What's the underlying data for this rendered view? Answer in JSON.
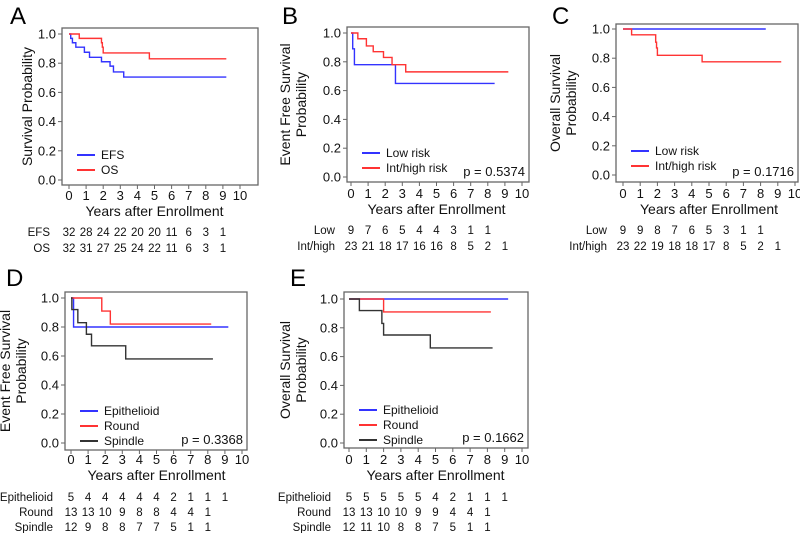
{
  "chart_data": [
    {
      "type": "line",
      "panel": "A",
      "ylabel": [
        "Survival Probability"
      ],
      "xlabel": "Years after Enrollment",
      "xlim": [
        0,
        10
      ],
      "ylim": [
        0,
        1
      ],
      "xticks": [
        "0",
        "1",
        "2",
        "3",
        "4",
        "5",
        "6",
        "7",
        "8",
        "9",
        "10"
      ],
      "yticks": [
        "0.0",
        "0.2",
        "0.4",
        "0.6",
        "0.8",
        "1.0"
      ],
      "p_value": null,
      "legend_position": "bottom-left",
      "series": [
        {
          "name": "EFS",
          "color": "#3333ff",
          "steps": [
            [
              0,
              1
            ],
            [
              0.1,
              0.97
            ],
            [
              0.2,
              0.94
            ],
            [
              0.4,
              0.91
            ],
            [
              0.9,
              0.875
            ],
            [
              1.2,
              0.84
            ],
            [
              1.9,
              0.81
            ],
            [
              2.4,
              0.78
            ],
            [
              2.6,
              0.74
            ],
            [
              3.2,
              0.705
            ]
          ],
          "end": 9.2
        },
        {
          "name": "OS",
          "color": "#ff3333",
          "steps": [
            [
              0,
              1
            ],
            [
              0.6,
              0.97
            ],
            [
              1.9,
              0.94
            ],
            [
              1.95,
              0.91
            ],
            [
              2.0,
              0.87
            ],
            [
              4.7,
              0.83
            ]
          ],
          "end": 9.2
        }
      ],
      "risk_table": [
        {
          "label": "EFS",
          "values": [
            "32",
            "28",
            "24",
            "22",
            "20",
            "20",
            "11",
            "6",
            "3",
            "1"
          ]
        },
        {
          "label": "OS",
          "values": [
            "32",
            "31",
            "27",
            "25",
            "24",
            "22",
            "11",
            "6",
            "3",
            "1"
          ]
        }
      ]
    },
    {
      "type": "line",
      "panel": "B",
      "ylabel": [
        "Event Free Survival",
        "Probability"
      ],
      "xlabel": "Years after Enrollment",
      "xlim": [
        0,
        10
      ],
      "ylim": [
        0,
        1
      ],
      "xticks": [
        "0",
        "1",
        "2",
        "3",
        "4",
        "5",
        "6",
        "7",
        "8",
        "9",
        "10"
      ],
      "yticks": [
        "0.0",
        "0.2",
        "0.4",
        "0.6",
        "0.8",
        "1.0"
      ],
      "p_value": "p = 0.5374",
      "legend_position": "bottom-left",
      "series": [
        {
          "name": "Low risk",
          "color": "#3333ff",
          "steps": [
            [
              0,
              1
            ],
            [
              0.1,
              0.89
            ],
            [
              0.2,
              0.78
            ],
            [
              2.6,
              0.65
            ]
          ],
          "end": 8.4
        },
        {
          "name": "Int/high risk",
          "color": "#ff3333",
          "steps": [
            [
              0,
              1
            ],
            [
              0.4,
              0.96
            ],
            [
              0.9,
              0.91
            ],
            [
              1.3,
              0.87
            ],
            [
              1.9,
              0.83
            ],
            [
              2.4,
              0.78
            ],
            [
              3.2,
              0.73
            ]
          ],
          "end": 9.2
        }
      ],
      "risk_table": [
        {
          "label": "Low",
          "values": [
            "9",
            "7",
            "6",
            "5",
            "4",
            "4",
            "3",
            "1",
            "1",
            ""
          ]
        },
        {
          "label": "Int/high",
          "values": [
            "23",
            "21",
            "18",
            "17",
            "16",
            "16",
            "8",
            "5",
            "2",
            "1"
          ]
        }
      ]
    },
    {
      "type": "line",
      "panel": "C",
      "ylabel": [
        "Overall Survival",
        "Probability"
      ],
      "xlabel": "Years after Enrollment",
      "xlim": [
        0,
        10
      ],
      "ylim": [
        0,
        1
      ],
      "xticks": [
        "0",
        "1",
        "2",
        "3",
        "4",
        "5",
        "6",
        "7",
        "8",
        "9",
        "10"
      ],
      "yticks": [
        "0.0",
        "0.2",
        "0.4",
        "0.6",
        "0.8",
        "1.0"
      ],
      "p_value": "p = 0.1716",
      "legend_position": "bottom-left",
      "series": [
        {
          "name": "Low risk",
          "color": "#3333ff",
          "steps": [
            [
              0,
              1
            ]
          ],
          "end": 8.3
        },
        {
          "name": "Int/high risk",
          "color": "#ff3333",
          "steps": [
            [
              0,
              1
            ],
            [
              0.5,
              0.96
            ],
            [
              1.9,
              0.91
            ],
            [
              1.95,
              0.87
            ],
            [
              2.0,
              0.82
            ],
            [
              4.6,
              0.775
            ]
          ],
          "end": 9.2
        }
      ],
      "risk_table": [
        {
          "label": "Low",
          "values": [
            "9",
            "9",
            "8",
            "7",
            "6",
            "5",
            "3",
            "1",
            "1",
            ""
          ]
        },
        {
          "label": "Int/high",
          "values": [
            "23",
            "22",
            "19",
            "18",
            "18",
            "17",
            "8",
            "5",
            "2",
            "1"
          ]
        }
      ]
    },
    {
      "type": "line",
      "panel": "D",
      "ylabel": [
        "Event Free Survival",
        "Probability"
      ],
      "xlabel": "Years after Enrollment",
      "xlim": [
        0,
        10
      ],
      "ylim": [
        0,
        1
      ],
      "xticks": [
        "0",
        "1",
        "2",
        "3",
        "4",
        "5",
        "6",
        "7",
        "8",
        "9",
        "10"
      ],
      "yticks": [
        "0.0",
        "0.2",
        "0.4",
        "0.6",
        "0.8",
        "1.0"
      ],
      "p_value": "p = 0.3368",
      "legend_position": "bottom-left",
      "series": [
        {
          "name": "Epithelioid",
          "color": "#3333ff",
          "steps": [
            [
              0,
              1
            ],
            [
              0.15,
              0.8
            ]
          ],
          "end": 9.2
        },
        {
          "name": "Round",
          "color": "#ff3333",
          "steps": [
            [
              0,
              1
            ],
            [
              1.8,
              0.91
            ],
            [
              2.3,
              0.82
            ]
          ],
          "end": 8.2
        },
        {
          "name": "Spindle",
          "color": "#333333",
          "steps": [
            [
              0,
              1
            ],
            [
              0.05,
              0.92
            ],
            [
              0.4,
              0.83
            ],
            [
              0.9,
              0.75
            ],
            [
              1.2,
              0.67
            ],
            [
              3.2,
              0.58
            ]
          ],
          "end": 8.3
        }
      ],
      "risk_table": [
        {
          "label": "Epithelioid",
          "values": [
            "5",
            "4",
            "4",
            "4",
            "4",
            "4",
            "2",
            "1",
            "1",
            "1"
          ]
        },
        {
          "label": "Round",
          "values": [
            "13",
            "13",
            "10",
            "9",
            "8",
            "8",
            "4",
            "4",
            "1",
            ""
          ]
        },
        {
          "label": "Spindle",
          "values": [
            "12",
            "9",
            "8",
            "8",
            "7",
            "7",
            "5",
            "1",
            "1",
            ""
          ]
        }
      ]
    },
    {
      "type": "line",
      "panel": "E",
      "ylabel": [
        "Overall Survival",
        "Probability"
      ],
      "xlabel": "Years after Enrollment",
      "xlim": [
        0,
        10
      ],
      "ylim": [
        0,
        1
      ],
      "xticks": [
        "0",
        "1",
        "2",
        "3",
        "4",
        "5",
        "6",
        "7",
        "8",
        "9",
        "10"
      ],
      "yticks": [
        "0.0",
        "0.2",
        "0.4",
        "0.6",
        "0.8",
        "1.0"
      ],
      "p_value": "p = 0.1662",
      "legend_position": "bottom-left",
      "series": [
        {
          "name": "Epithelioid",
          "color": "#3333ff",
          "steps": [
            [
              0,
              1
            ]
          ],
          "end": 9.2
        },
        {
          "name": "Round",
          "color": "#ff3333",
          "steps": [
            [
              0,
              1
            ],
            [
              2.0,
              0.91
            ]
          ],
          "end": 8.2
        },
        {
          "name": "Spindle",
          "color": "#333333",
          "steps": [
            [
              0,
              1
            ],
            [
              0.6,
              0.92
            ],
            [
              1.9,
              0.83
            ],
            [
              2.0,
              0.75
            ],
            [
              4.7,
              0.66
            ]
          ],
          "end": 8.3
        }
      ],
      "risk_table": [
        {
          "label": "Epithelioid",
          "values": [
            "5",
            "5",
            "5",
            "5",
            "5",
            "4",
            "2",
            "1",
            "1",
            "1"
          ]
        },
        {
          "label": "Round",
          "values": [
            "13",
            "13",
            "10",
            "10",
            "9",
            "9",
            "4",
            "4",
            "1",
            ""
          ]
        },
        {
          "label": "Spindle",
          "values": [
            "12",
            "11",
            "10",
            "8",
            "8",
            "7",
            "5",
            "1",
            "1",
            ""
          ]
        }
      ]
    }
  ]
}
